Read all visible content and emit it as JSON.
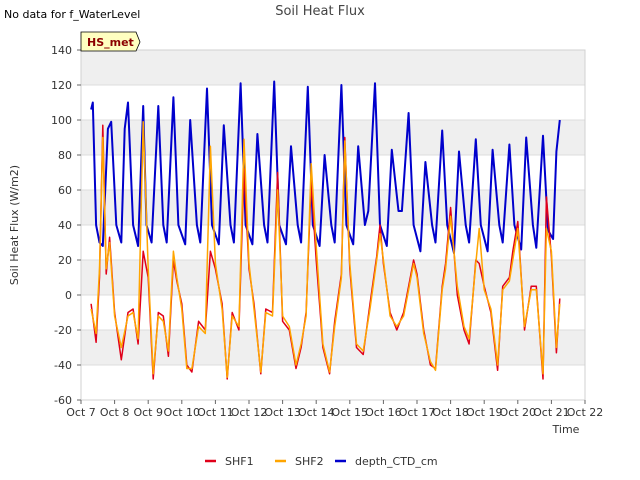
{
  "note": "No data for f_WaterLevel",
  "badge": "HS_met",
  "colors": {
    "SHF1": "#e0001a",
    "SHF2": "#ffa500",
    "depth_CTD_cm": "#0000cc",
    "band": "#efefef"
  },
  "chart_data": {
    "type": "line",
    "title": "Soil Heat Flux",
    "xlabel": "Time",
    "ylabel": "Soil Heat Flux (W/m2)",
    "xlim": [
      7,
      22
    ],
    "ylim": [
      -60,
      140
    ],
    "yticks": [
      -60,
      -40,
      -20,
      0,
      20,
      40,
      60,
      80,
      100,
      120,
      140
    ],
    "xticks": [
      7,
      8,
      9,
      10,
      11,
      12,
      13,
      14,
      15,
      16,
      17,
      18,
      19,
      20,
      21,
      22
    ],
    "xtick_labels": [
      "Oct 7",
      "Oct 8",
      "Oct 9",
      "Oct 10",
      "Oct 11",
      "Oct 12",
      "Oct 13",
      "Oct 14",
      "Oct 15",
      "Oct 16",
      "Oct 17",
      "Oct 18",
      "Oct 19",
      "Oct 20",
      "Oct 21",
      "Oct 22"
    ],
    "legend": [
      "SHF1",
      "SHF2",
      "depth_CTD_cm"
    ],
    "series": [
      {
        "name": "SHF1",
        "x": [
          7.3,
          7.45,
          7.55,
          7.65,
          7.75,
          7.85,
          8.0,
          8.2,
          8.4,
          8.55,
          8.7,
          8.85,
          9.0,
          9.15,
          9.3,
          9.45,
          9.6,
          9.75,
          9.85,
          10.0,
          10.15,
          10.3,
          10.5,
          10.7,
          10.85,
          11.0,
          11.2,
          11.35,
          11.5,
          11.7,
          11.85,
          12.0,
          12.15,
          12.35,
          12.5,
          12.7,
          12.85,
          13.0,
          13.2,
          13.4,
          13.55,
          13.7,
          13.85,
          14.0,
          14.2,
          14.4,
          14.55,
          14.75,
          14.85,
          15.0,
          15.2,
          15.4,
          15.6,
          15.8,
          15.9,
          16.0,
          16.2,
          16.4,
          16.6,
          16.8,
          16.9,
          17.0,
          17.2,
          17.4,
          17.55,
          17.75,
          17.85,
          18.0,
          18.2,
          18.4,
          18.55,
          18.75,
          18.85,
          19.0,
          19.2,
          19.4,
          19.55,
          19.75,
          19.85,
          20.0,
          20.2,
          20.4,
          20.55,
          20.75,
          20.85,
          21.0,
          21.15,
          21.25
        ],
        "y": [
          -5,
          -27,
          10,
          97,
          12,
          33,
          -10,
          -37,
          -10,
          -8,
          -28,
          25,
          10,
          -48,
          -10,
          -12,
          -35,
          20,
          8,
          -5,
          -40,
          -44,
          -15,
          -20,
          25,
          15,
          -5,
          -48,
          -10,
          -20,
          72,
          15,
          -5,
          -45,
          -8,
          -10,
          70,
          -15,
          -20,
          -42,
          -30,
          -10,
          65,
          20,
          -30,
          -45,
          -15,
          12,
          90,
          15,
          -30,
          -34,
          -5,
          22,
          40,
          18,
          -10,
          -20,
          -10,
          10,
          20,
          12,
          -20,
          -40,
          -42,
          5,
          18,
          50,
          0,
          -20,
          -28,
          20,
          18,
          5,
          -10,
          -43,
          5,
          10,
          25,
          42,
          -20,
          5,
          5,
          -48,
          56,
          22,
          -33,
          -2
        ]
      },
      {
        "name": "SHF2",
        "x": [
          7.3,
          7.45,
          7.55,
          7.65,
          7.75,
          7.85,
          8.0,
          8.2,
          8.4,
          8.55,
          8.7,
          8.85,
          9.0,
          9.15,
          9.3,
          9.45,
          9.6,
          9.75,
          9.85,
          10.0,
          10.15,
          10.3,
          10.5,
          10.7,
          10.85,
          11.0,
          11.2,
          11.35,
          11.5,
          11.7,
          11.85,
          12.0,
          12.15,
          12.35,
          12.5,
          12.7,
          12.85,
          13.0,
          13.2,
          13.4,
          13.55,
          13.7,
          13.85,
          14.0,
          14.2,
          14.4,
          14.55,
          14.75,
          14.85,
          15.0,
          15.2,
          15.4,
          15.6,
          15.8,
          15.9,
          16.0,
          16.2,
          16.4,
          16.6,
          16.8,
          16.9,
          17.0,
          17.2,
          17.4,
          17.55,
          17.75,
          17.85,
          18.0,
          18.2,
          18.4,
          18.55,
          18.75,
          18.85,
          19.0,
          19.2,
          19.4,
          19.55,
          19.75,
          19.85,
          20.0,
          20.2,
          20.4,
          20.55,
          20.75,
          20.85,
          21.0,
          21.15,
          21.25
        ],
        "y": [
          -8,
          -22,
          15,
          90,
          15,
          30,
          -12,
          -30,
          -12,
          -10,
          -25,
          99,
          15,
          -45,
          -12,
          -15,
          -32,
          25,
          10,
          -8,
          -42,
          -42,
          -18,
          -22,
          85,
          18,
          -8,
          -47,
          -12,
          -18,
          89,
          18,
          -8,
          -44,
          -10,
          -12,
          60,
          -12,
          -18,
          -40,
          -28,
          -12,
          75,
          28,
          -28,
          -44,
          -18,
          10,
          88,
          18,
          -28,
          -32,
          -8,
          20,
          35,
          20,
          -12,
          -18,
          -12,
          8,
          18,
          10,
          -22,
          -38,
          -43,
          3,
          15,
          45,
          5,
          -18,
          -25,
          18,
          38,
          3,
          -8,
          -40,
          3,
          8,
          20,
          38,
          -18,
          3,
          3,
          -45,
          38,
          25,
          -30,
          -5
        ]
      },
      {
        "name": "depth_CTD_cm",
        "x": [
          7.3,
          7.35,
          7.45,
          7.55,
          7.65,
          7.8,
          7.9,
          8.05,
          8.2,
          8.3,
          8.4,
          8.55,
          8.7,
          8.85,
          8.95,
          9.1,
          9.3,
          9.45,
          9.55,
          9.75,
          9.9,
          10.1,
          10.25,
          10.45,
          10.55,
          10.75,
          10.9,
          11.1,
          11.25,
          11.45,
          11.55,
          11.75,
          11.9,
          12.1,
          12.25,
          12.45,
          12.55,
          12.75,
          12.9,
          13.1,
          13.25,
          13.45,
          13.55,
          13.75,
          13.9,
          14.1,
          14.25,
          14.45,
          14.55,
          14.75,
          14.9,
          15.1,
          15.25,
          15.45,
          15.55,
          15.75,
          15.9,
          16.1,
          16.25,
          16.45,
          16.55,
          16.75,
          16.9,
          17.1,
          17.25,
          17.45,
          17.55,
          17.75,
          17.9,
          18.1,
          18.25,
          18.45,
          18.55,
          18.75,
          18.9,
          19.1,
          19.25,
          19.45,
          19.55,
          19.75,
          19.9,
          20.1,
          20.25,
          20.45,
          20.55,
          20.75,
          20.9,
          21.05,
          21.15,
          21.25
        ],
        "y": [
          106,
          110,
          40,
          30,
          28,
          95,
          99,
          40,
          30,
          95,
          110,
          40,
          28,
          108,
          40,
          30,
          108,
          40,
          30,
          113,
          40,
          29,
          100,
          40,
          30,
          118,
          40,
          29,
          97,
          40,
          30,
          121,
          40,
          29,
          92,
          40,
          30,
          122,
          40,
          29,
          85,
          40,
          30,
          119,
          40,
          28,
          80,
          40,
          30,
          120,
          40,
          29,
          85,
          40,
          48,
          121,
          40,
          28,
          83,
          48,
          48,
          104,
          40,
          25,
          76,
          40,
          30,
          94,
          40,
          24,
          82,
          40,
          30,
          89,
          40,
          25,
          83,
          40,
          30,
          86,
          40,
          26,
          90,
          40,
          27,
          91,
          37,
          32,
          82,
          100
        ]
      }
    ]
  }
}
